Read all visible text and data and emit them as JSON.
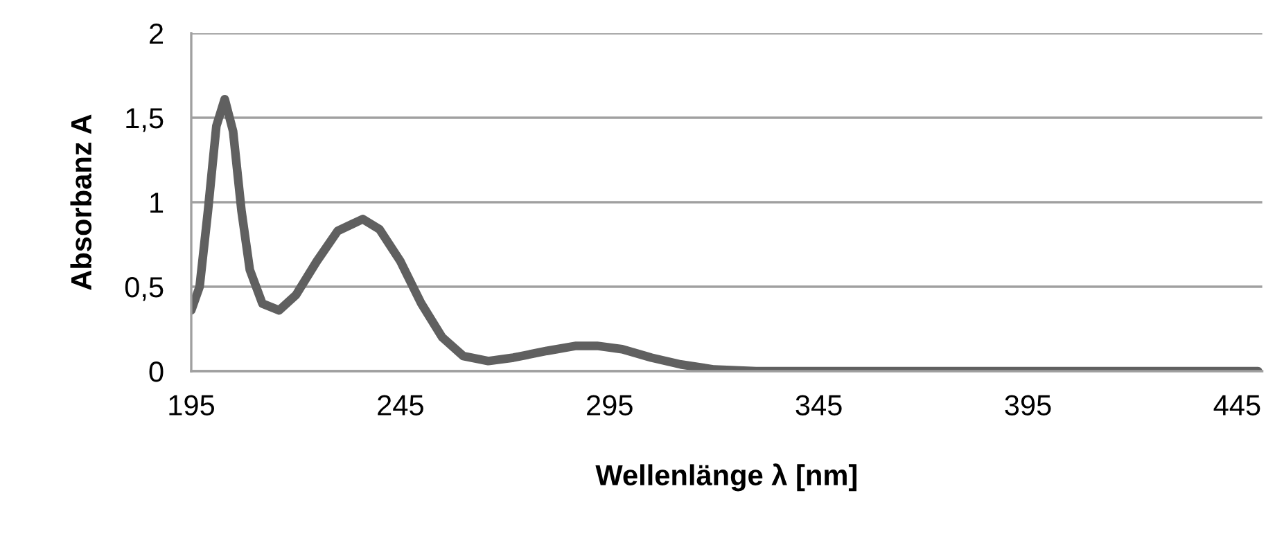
{
  "chart_data": {
    "type": "line",
    "xlabel": "Wellenlänge λ [nm]",
    "ylabel": "Absorbanz A",
    "x": [
      195,
      197,
      199,
      201,
      203,
      205,
      207,
      209,
      212,
      216,
      220,
      225,
      230,
      236,
      240,
      245,
      250,
      255,
      260,
      266,
      272,
      280,
      287,
      292,
      298,
      305,
      312,
      320,
      330,
      450
    ],
    "series": [
      {
        "color": "#606060",
        "values": [
          0.36,
          0.5,
          0.95,
          1.45,
          1.61,
          1.42,
          0.95,
          0.6,
          0.4,
          0.36,
          0.45,
          0.65,
          0.83,
          0.9,
          0.84,
          0.65,
          0.4,
          0.2,
          0.09,
          0.06,
          0.08,
          0.12,
          0.15,
          0.15,
          0.13,
          0.08,
          0.04,
          0.01,
          0,
          0
        ]
      }
    ],
    "xlim": [
      195,
      451
    ],
    "xticks": [
      195,
      245,
      295,
      345,
      395,
      445
    ],
    "ylim": [
      0,
      2
    ],
    "yticks": [
      0,
      {
        "value": 0.5,
        "label": "0,5"
      },
      1,
      {
        "value": 1.5,
        "label": "1,5"
      },
      2
    ],
    "grid": "y",
    "marker": "none",
    "line_style": "solid"
  }
}
